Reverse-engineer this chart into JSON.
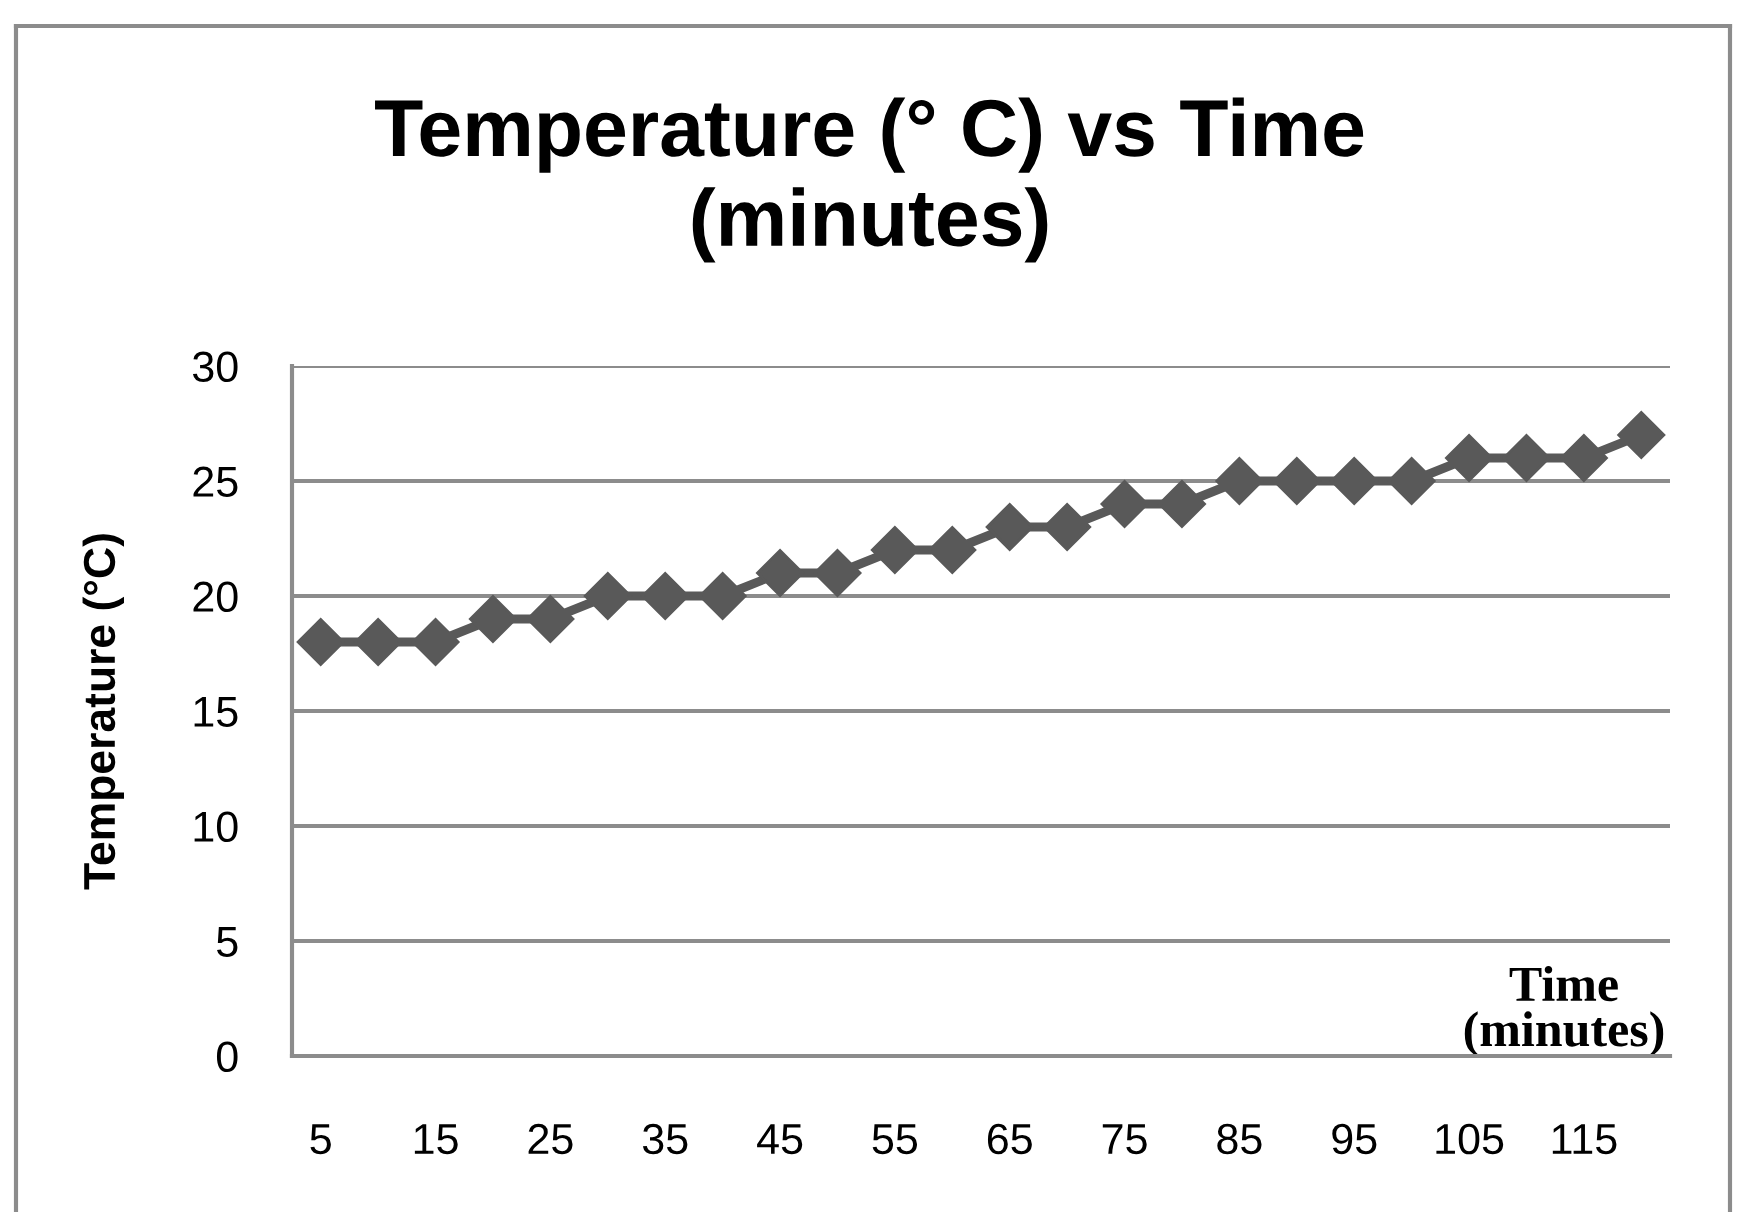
{
  "chart_data": {
    "type": "line",
    "title": "Temperature (° C) vs Time\n(minutes)",
    "xlabel": "Time\n(minutes)",
    "ylabel": "Temperature (°C)",
    "categories": [
      "5",
      null,
      "15",
      null,
      "25",
      null,
      "35",
      null,
      "45",
      null,
      "55",
      null,
      "65",
      null,
      "75",
      null,
      "85",
      null,
      "95",
      null,
      "105",
      null,
      "115",
      null
    ],
    "series": [
      {
        "color": "#595959",
        "values": [
          18,
          18,
          18,
          19,
          19,
          20,
          20,
          20,
          21,
          21,
          22,
          22,
          23,
          23,
          24,
          24,
          25,
          25,
          25,
          25,
          26,
          26,
          26,
          27
        ]
      }
    ],
    "ylim": [
      0,
      30
    ],
    "yticks": [
      0,
      5,
      10,
      15,
      20,
      25,
      30
    ],
    "grid": "y",
    "marker": "diamond",
    "line_style": "solid"
  }
}
